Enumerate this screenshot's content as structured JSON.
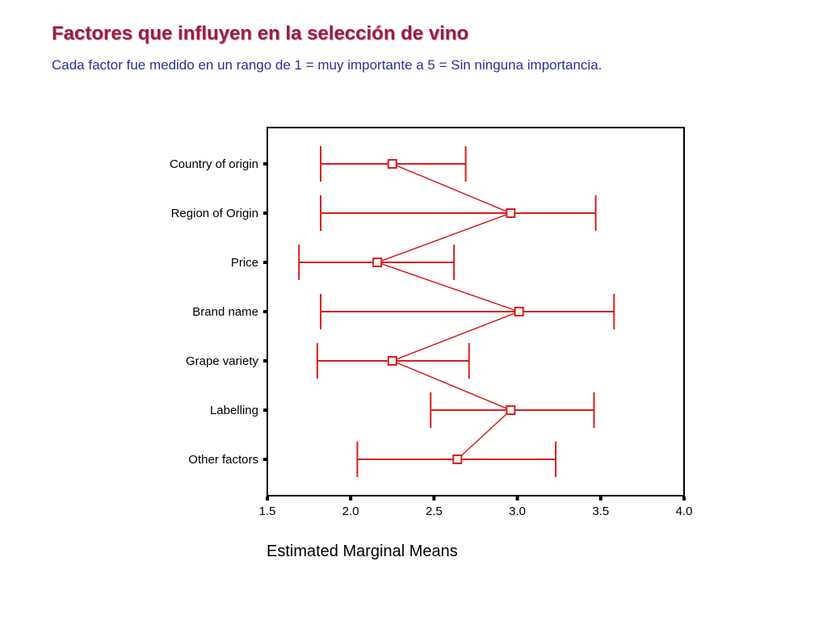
{
  "header": {
    "title": "Factores que influyen en la selección de vino",
    "subtitle": "Cada factor fue medido en un rango de 1 = muy importante a 5 = Sin ninguna importancia."
  },
  "colors": {
    "title": "#9b1c43",
    "subtitle": "#2e2e9a",
    "series": "#d81e1e",
    "axis": "#000000"
  },
  "chart_data": {
    "type": "line",
    "orientation": "horizontal",
    "xlabel": "Estimated Marginal Means",
    "ylabel": "",
    "xlim": [
      1.5,
      4.0
    ],
    "xticks": [
      "1.5",
      "2.0",
      "2.5",
      "3.0",
      "3.5",
      "4.0"
    ],
    "xtick_values": [
      1.5,
      2.0,
      2.5,
      3.0,
      3.5,
      4.0
    ],
    "grid": false,
    "categories": [
      "Country of origin",
      "Region of Origin",
      "Price",
      "Brand name",
      "Grape variety",
      "Labelling",
      "Other factors"
    ],
    "series": [
      {
        "means": [
          2.25,
          2.96,
          2.16,
          3.01,
          2.25,
          2.96,
          2.64
        ],
        "lower": [
          1.82,
          1.82,
          1.69,
          1.82,
          1.8,
          2.48,
          2.04
        ],
        "upper": [
          2.69,
          3.47,
          2.62,
          3.58,
          2.71,
          3.46,
          3.23
        ]
      }
    ]
  }
}
